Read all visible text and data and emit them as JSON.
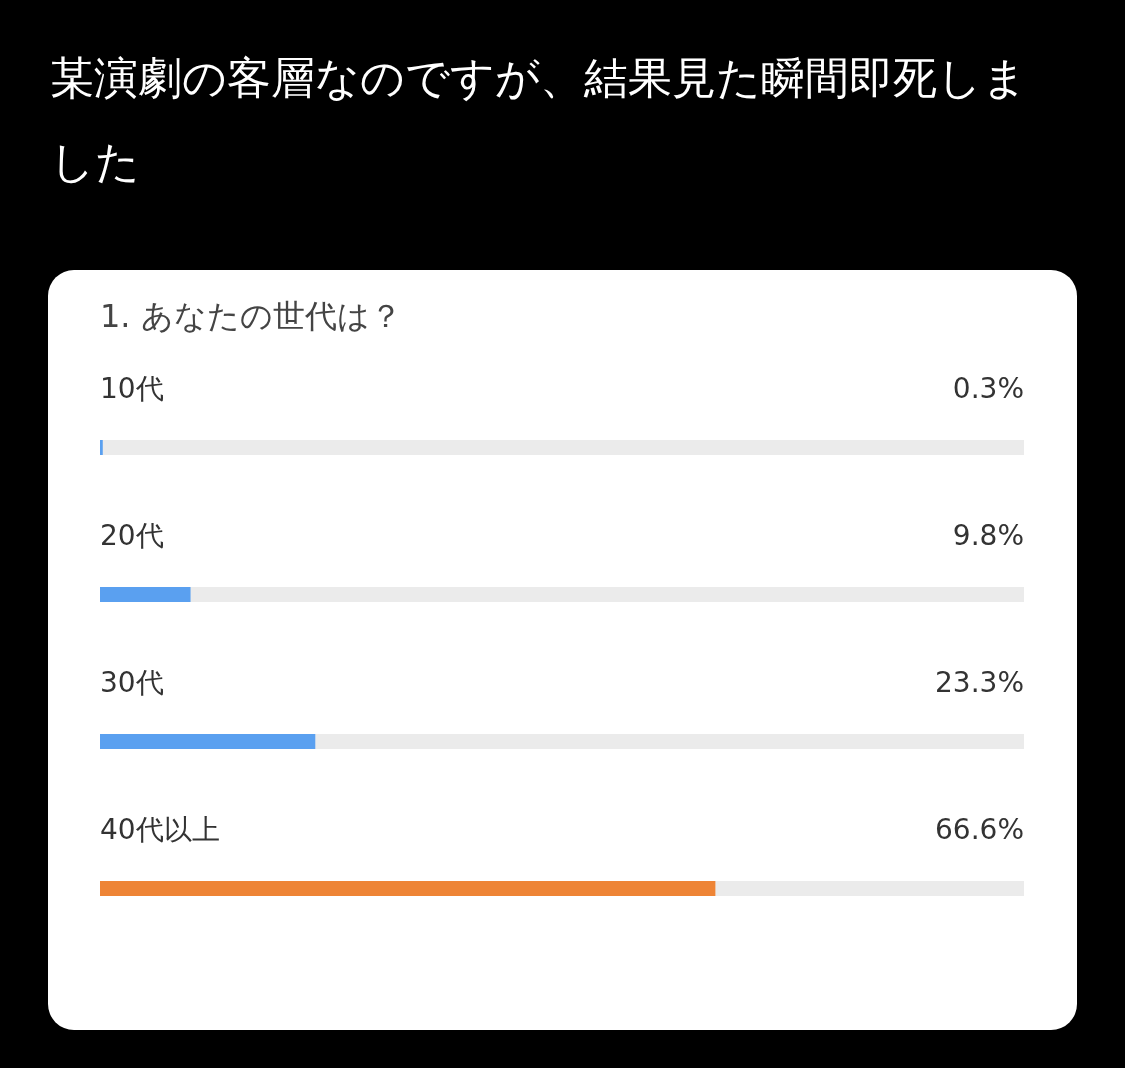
{
  "chart_data": {
    "type": "bar",
    "orientation": "horizontal",
    "title": "某演劇の客層なのですが、結果見た瞬間即死しました",
    "subtitle": "1. あなたの世代は？",
    "categories": [
      "10代",
      "20代",
      "30代",
      "40代以上"
    ],
    "values": [
      0.3,
      9.8,
      23.3,
      66.6
    ],
    "value_labels": [
      "0.3%",
      "9.8%",
      "23.3%",
      "66.6%"
    ],
    "colors": [
      "#5aa0f0",
      "#5aa0f0",
      "#5aa0f0",
      "#ee8435"
    ],
    "xlim": [
      0,
      100
    ]
  }
}
